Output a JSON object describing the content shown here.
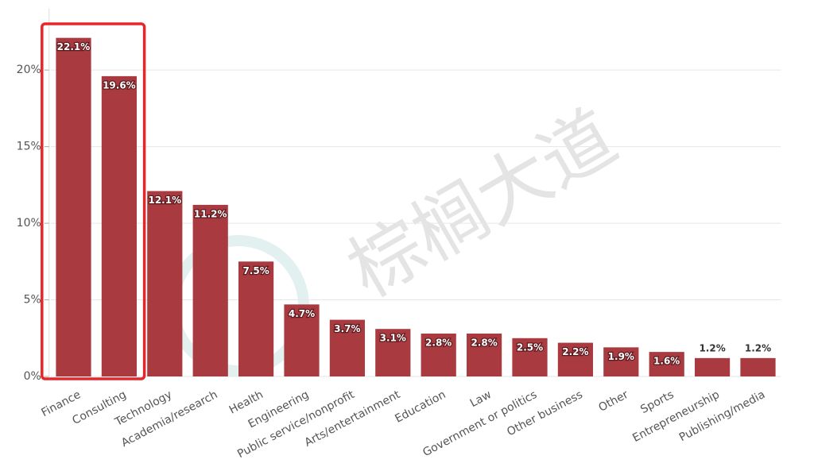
{
  "chart_data": {
    "type": "bar",
    "categories": [
      "Finance",
      "Consulting",
      "Technology",
      "Academia/research",
      "Health",
      "Engineering",
      "Public service/nonprofit",
      "Arts/entertainment",
      "Education",
      "Law",
      "Government or politics",
      "Other business",
      "Other",
      "Sports",
      "Entrepreneurship",
      "Publishing/media"
    ],
    "values": [
      22.1,
      19.6,
      12.1,
      11.2,
      7.5,
      4.7,
      3.7,
      3.1,
      2.8,
      2.8,
      2.5,
      2.2,
      1.9,
      1.6,
      1.2,
      1.2
    ],
    "value_labels": [
      "22.1%",
      "19.6%",
      "12.1%",
      "11.2%",
      "7.5%",
      "4.7%",
      "3.7%",
      "3.1%",
      "2.8%",
      "2.8%",
      "2.5%",
      "2.2%",
      "1.9%",
      "1.6%",
      "1.2%",
      "1.2%"
    ],
    "color": "#a83a40",
    "ylim": [
      0,
      24
    ],
    "yticks": [
      {
        "value": 0,
        "label": "0%"
      },
      {
        "value": 5,
        "label": "5%"
      },
      {
        "value": 10,
        "label": "10%"
      },
      {
        "value": 15,
        "label": "15%"
      },
      {
        "value": 20,
        "label": "20%"
      }
    ],
    "grid": true,
    "watermark": "棕榈大道"
  }
}
